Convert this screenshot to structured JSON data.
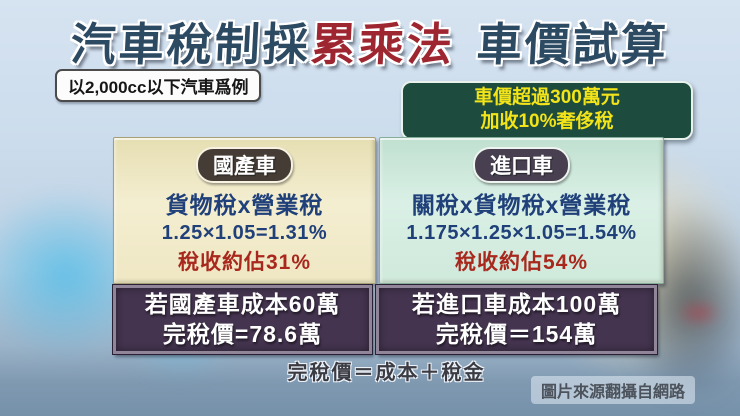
{
  "headline": {
    "segment1": "汽車稅制採",
    "highlight": "累乘法",
    "segment2": "車價試算"
  },
  "subtitle": "以2,000cc以下汽車爲例",
  "note_bubble": {
    "line1": "車價超過300萬元",
    "line2": "加收10%奢侈稅"
  },
  "columns": [
    {
      "header": "國產車",
      "formula_label": "貨物稅x營業稅",
      "calculation": "1.25×1.05=1.31%",
      "tax_share": "稅收約佔31%",
      "example_line1": "若國產車成本60萬",
      "example_line2": "完稅價=78.6萬"
    },
    {
      "header": "進口車",
      "formula_label": "關稅x貨物稅x營業稅",
      "calculation": "1.175×1.25×1.05=1.54%",
      "tax_share": "稅收約佔54%",
      "example_line1": "若進口車成本100萬",
      "example_line2": "完稅價＝154萬"
    }
  ],
  "footer": {
    "formula_note": "完稅價＝成本＋稅金",
    "source_credit": "圖片來源翻攝自網路"
  },
  "colors": {
    "headline_navy": "#2d4a63",
    "headline_red": "#9e2630",
    "bubble_green": "#1d4c3e",
    "bubble_text_yellow": "#f2e419",
    "domestic_card_bg": "#f0e8c8",
    "import_card_bg": "#d2ebdf",
    "formula_navy": "#20407a",
    "tax_share_red": "#a8281e",
    "example_box_purple": "#44344f"
  }
}
